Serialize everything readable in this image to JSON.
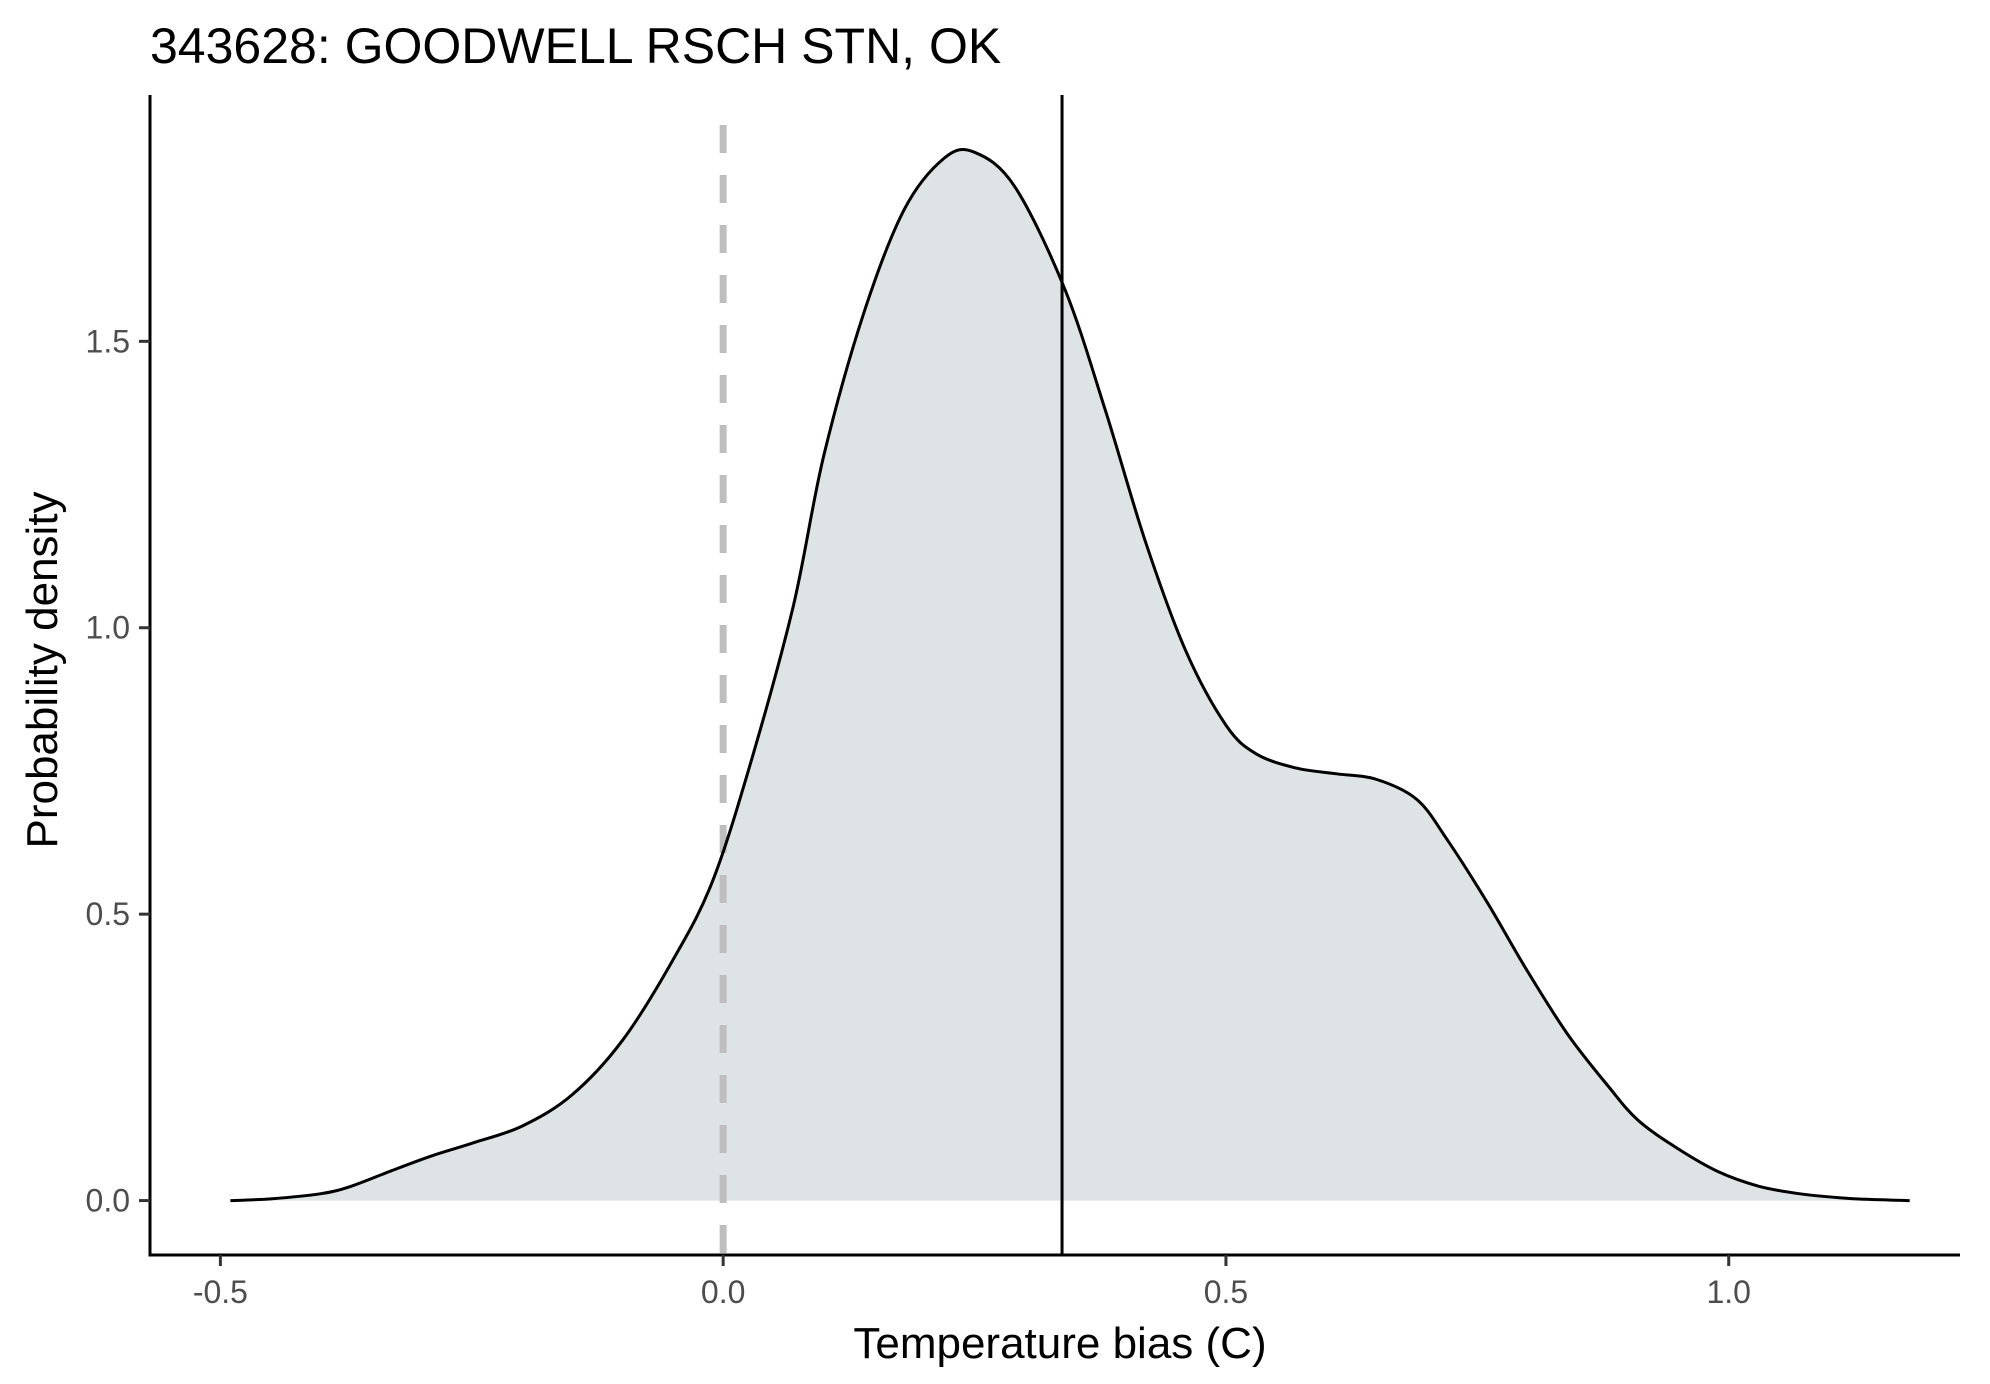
{
  "chart_data": {
    "type": "area",
    "title": "343628: GOODWELL RSCH STN, OK",
    "xlabel": "Temperature bias (C)",
    "ylabel": "Probability density",
    "xlim": [
      -0.57,
      1.23
    ],
    "ylim": [
      -0.095,
      1.93
    ],
    "x_ticks": [
      -0.5,
      0.0,
      0.5,
      1.0
    ],
    "x_tick_labels": [
      "-0.5",
      "0.0",
      "0.5",
      "1.0"
    ],
    "y_ticks": [
      0.0,
      0.5,
      1.0,
      1.5
    ],
    "y_tick_labels": [
      "0.0",
      "0.5",
      "1.0",
      "1.5"
    ],
    "grid": false,
    "fill_color": "#dee3e5",
    "line_color": "#000000",
    "reference_lines": [
      {
        "x": 0.0,
        "style": "dashed",
        "color": "#bebebe"
      },
      {
        "x": 0.337,
        "style": "solid",
        "color": "#000000"
      }
    ],
    "x": [
      -0.49,
      -0.45,
      -0.4,
      -0.37,
      -0.33,
      -0.29,
      -0.25,
      -0.2,
      -0.15,
      -0.1,
      -0.05,
      -0.01,
      0.03,
      0.07,
      0.1,
      0.14,
      0.18,
      0.22,
      0.25,
      0.29,
      0.34,
      0.38,
      0.42,
      0.46,
      0.5,
      0.53,
      0.57,
      0.61,
      0.65,
      0.69,
      0.72,
      0.76,
      0.8,
      0.84,
      0.88,
      0.91,
      0.95,
      0.99,
      1.03,
      1.07,
      1.11,
      1.14,
      1.18
    ],
    "y": [
      0.0,
      0.003,
      0.012,
      0.025,
      0.052,
      0.078,
      0.1,
      0.13,
      0.185,
      0.28,
      0.42,
      0.56,
      0.78,
      1.04,
      1.3,
      1.55,
      1.73,
      1.82,
      1.83,
      1.77,
      1.59,
      1.38,
      1.15,
      0.96,
      0.83,
      0.78,
      0.755,
      0.745,
      0.735,
      0.7,
      0.63,
      0.52,
      0.4,
      0.29,
      0.2,
      0.14,
      0.09,
      0.05,
      0.025,
      0.012,
      0.005,
      0.002,
      0.0
    ]
  }
}
